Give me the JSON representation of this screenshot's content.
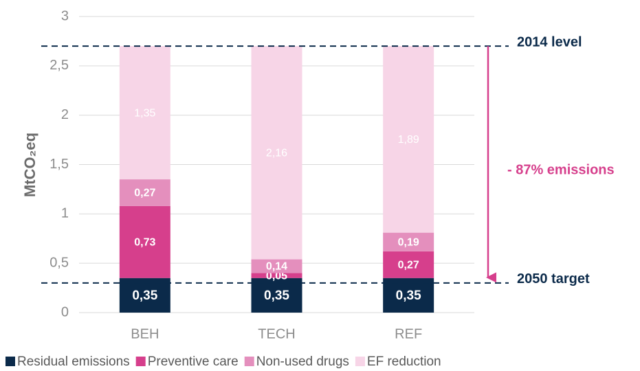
{
  "chart_data": {
    "type": "stacked_bar",
    "y_label": "MtCO₂eq",
    "categories": [
      "BEH",
      "TECH",
      "REF"
    ],
    "series": [
      {
        "name": "Residual emissions",
        "color": "#0b2a4a",
        "values": [
          0.35,
          0.35,
          0.35
        ],
        "value_labels": [
          "0,35",
          "0,35",
          "0,35"
        ]
      },
      {
        "name": "Preventive care",
        "color": "#d63f8c",
        "values": [
          0.73,
          0.05,
          0.27
        ],
        "value_labels": [
          "0,73",
          "0,05",
          "0,27"
        ]
      },
      {
        "name": "Non-used drugs",
        "color": "#e48fbd",
        "values": [
          0.27,
          0.14,
          0.19
        ],
        "value_labels": [
          "0,27",
          "0,14",
          "0,19"
        ]
      },
      {
        "name": "EF reduction",
        "color": "#f7d5e7",
        "values": [
          1.35,
          2.16,
          1.89
        ],
        "value_labels": [
          "1,35",
          "2,16",
          "1,89"
        ]
      }
    ],
    "ylim": [
      0,
      3
    ],
    "yticks": [
      0,
      {
        "value": 0.5,
        "label": "0,5"
      },
      1,
      {
        "value": 1.5,
        "label": "1,5"
      },
      2,
      {
        "value": 2.5,
        "label": "2,5"
      },
      3
    ],
    "grid": true,
    "reference_lines": [
      {
        "value": 2.7,
        "label": "2014 level"
      },
      {
        "value": 0.3,
        "label": "2050 target"
      }
    ],
    "annotation": "- 87% emissions",
    "legend": "bottom"
  }
}
